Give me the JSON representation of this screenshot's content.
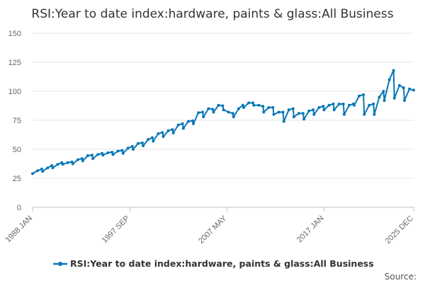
{
  "chart_data": {
    "type": "line",
    "title": "RSI:Year to date index:hardware, paints & glass:All Business",
    "xlabel": "",
    "ylabel": "",
    "x_range": [
      "1988 JAN",
      "2025 DEC"
    ],
    "x_ticks": [
      "1988 JAN",
      "1997 SEP",
      "2007 MAY",
      "2017 JAN",
      "2025 DEC"
    ],
    "ylim": [
      0,
      150
    ],
    "y_ticks": [
      0,
      25,
      50,
      75,
      100,
      125,
      150
    ],
    "grid": true,
    "legend_position": "bottom",
    "series": [
      {
        "name": "RSI:Year to date index:hardware, paints & glass:All Business",
        "color": "#0a77b5",
        "points": [
          [
            "1988 JAN",
            29
          ],
          [
            "1988 JUL",
            31.5
          ],
          [
            "1988 DEC",
            33
          ],
          [
            "1989 JAN",
            31
          ],
          [
            "1989 JUL",
            34
          ],
          [
            "1989 DEC",
            36
          ],
          [
            "1990 JAN",
            34
          ],
          [
            "1990 JUL",
            37
          ],
          [
            "1990 DEC",
            38.5
          ],
          [
            "1991 JAN",
            37
          ],
          [
            "1991 JUL",
            38.5
          ],
          [
            "1991 DEC",
            39
          ],
          [
            "1992 JAN",
            37.5
          ],
          [
            "1992 JUL",
            41
          ],
          [
            "1992 DEC",
            42
          ],
          [
            "1993 JAN",
            40
          ],
          [
            "1993 JUL",
            44.5
          ],
          [
            "1993 DEC",
            45
          ],
          [
            "1994 JAN",
            42
          ],
          [
            "1994 JUL",
            45.5
          ],
          [
            "1994 DEC",
            46.5
          ],
          [
            "1995 JAN",
            45
          ],
          [
            "1995 JUL",
            47
          ],
          [
            "1995 DEC",
            47.5
          ],
          [
            "1996 JAN",
            45.5
          ],
          [
            "1996 JUL",
            48.5
          ],
          [
            "1996 DEC",
            49
          ],
          [
            "1997 JAN",
            46.5
          ],
          [
            "1997 JUL",
            51
          ],
          [
            "1997 DEC",
            52.5
          ],
          [
            "1998 JAN",
            50
          ],
          [
            "1998 JUL",
            55
          ],
          [
            "1998 DEC",
            55.5
          ],
          [
            "1999 JAN",
            53
          ],
          [
            "1999 JUL",
            58.5
          ],
          [
            "1999 DEC",
            60
          ],
          [
            "2000 JAN",
            57
          ],
          [
            "2000 JUL",
            63.5
          ],
          [
            "2000 DEC",
            64.5
          ],
          [
            "2001 JAN",
            61
          ],
          [
            "2001 JUL",
            66
          ],
          [
            "2001 DEC",
            67
          ],
          [
            "2002 JAN",
            64
          ],
          [
            "2002 JUL",
            71
          ],
          [
            "2002 DEC",
            72
          ],
          [
            "2003 JAN",
            68
          ],
          [
            "2003 JUL",
            74
          ],
          [
            "2003 DEC",
            74.5
          ],
          [
            "2004 JAN",
            72
          ],
          [
            "2004 JUL",
            81.5
          ],
          [
            "2004 DEC",
            82
          ],
          [
            "2005 JAN",
            78
          ],
          [
            "2005 JUL",
            85
          ],
          [
            "2005 DEC",
            84.5
          ],
          [
            "2006 JAN",
            82
          ],
          [
            "2006 JUL",
            88
          ],
          [
            "2006 DEC",
            87.5
          ],
          [
            "2007 JAN",
            84
          ],
          [
            "2007 JUL",
            82
          ],
          [
            "2007 DEC",
            81
          ],
          [
            "2008 JAN",
            78
          ],
          [
            "2008 JUL",
            85
          ],
          [
            "2008 DEC",
            88
          ],
          [
            "2009 JAN",
            86
          ],
          [
            "2009 JUL",
            90
          ],
          [
            "2009 DEC",
            90
          ],
          [
            "2010 JAN",
            88
          ],
          [
            "2010 JUL",
            88
          ],
          [
            "2010 DEC",
            87
          ],
          [
            "2011 JAN",
            82
          ],
          [
            "2011 JUL",
            86
          ],
          [
            "2011 DEC",
            86
          ],
          [
            "2012 JAN",
            80
          ],
          [
            "2012 JUL",
            82
          ],
          [
            "2012 DEC",
            82
          ],
          [
            "2013 JAN",
            74
          ],
          [
            "2013 JUL",
            84
          ],
          [
            "2013 DEC",
            85
          ],
          [
            "2014 JAN",
            78
          ],
          [
            "2014 JUL",
            81
          ],
          [
            "2014 DEC",
            81
          ],
          [
            "2015 JAN",
            76
          ],
          [
            "2015 JUL",
            83
          ],
          [
            "2015 DEC",
            84
          ],
          [
            "2016 JAN",
            80
          ],
          [
            "2016 JUL",
            86
          ],
          [
            "2016 DEC",
            87
          ],
          [
            "2017 JAN",
            84
          ],
          [
            "2017 JUL",
            88
          ],
          [
            "2017 DEC",
            89
          ],
          [
            "2018 JAN",
            84
          ],
          [
            "2018 JUL",
            89
          ],
          [
            "2018 DEC",
            89
          ],
          [
            "2019 JAN",
            80
          ],
          [
            "2019 JUL",
            88
          ],
          [
            "2019 DEC",
            89
          ],
          [
            "2020 JAN",
            88
          ],
          [
            "2020 JUL",
            96
          ],
          [
            "2020 DEC",
            97
          ],
          [
            "2021 JAN",
            80
          ],
          [
            "2021 JUL",
            88
          ],
          [
            "2021 DEC",
            89
          ],
          [
            "2022 JAN",
            80
          ],
          [
            "2022 JUL",
            95
          ],
          [
            "2022 DEC",
            100
          ],
          [
            "2023 JAN",
            92
          ],
          [
            "2023 JUL",
            110
          ],
          [
            "2023 DEC",
            118
          ],
          [
            "2024 JAN",
            94
          ],
          [
            "2024 JUL",
            105
          ],
          [
            "2024 DEC",
            103
          ],
          [
            "2025 JAN",
            92
          ],
          [
            "2025 JUL",
            102
          ],
          [
            "2025 DEC",
            101
          ]
        ]
      }
    ],
    "source_label": "Source:"
  }
}
